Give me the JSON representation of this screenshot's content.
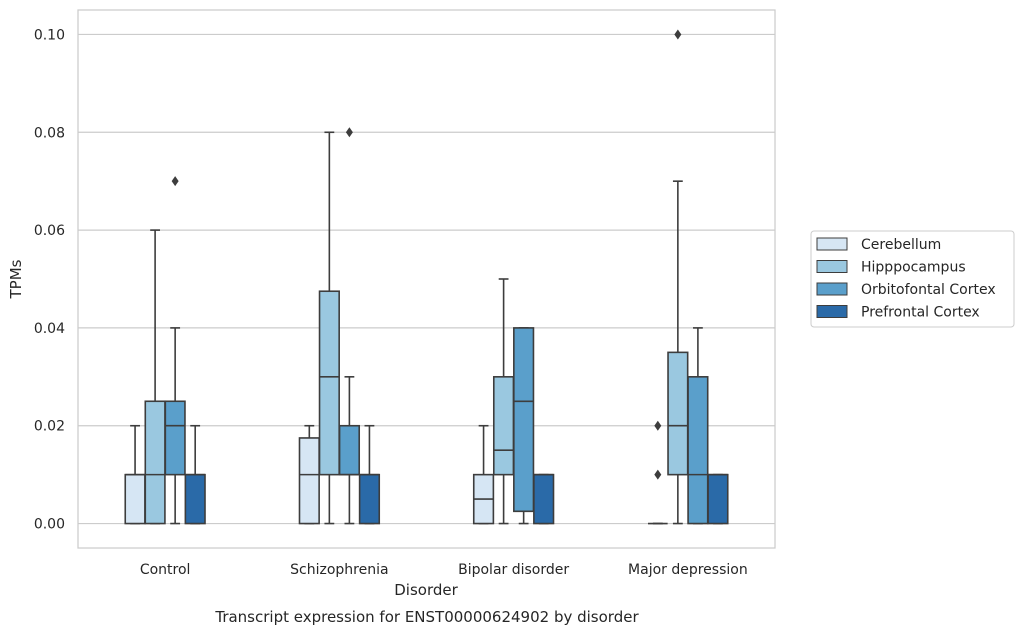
{
  "chart_data": {
    "type": "boxplot",
    "title": "Transcript expression for ENST00000624902 by disorder",
    "xlabel": "Disorder",
    "ylabel": "TPMs",
    "ylim": [
      -0.005,
      0.105
    ],
    "yticks": [
      0.0,
      0.02,
      0.04,
      0.06,
      0.08,
      0.1
    ],
    "ytick_labels": [
      "0.00",
      "0.02",
      "0.04",
      "0.06",
      "0.08",
      "0.10"
    ],
    "grid": true,
    "legend_position": "right",
    "categories": [
      "Control",
      "Schizophrenia",
      "Bipolar disorder",
      "Major depression"
    ],
    "series": [
      {
        "name": "Cerebellum",
        "color": "#d6e6f4",
        "boxes": [
          {
            "whislo": 0.0,
            "q1": 0.0,
            "med": 0.01,
            "q3": 0.01,
            "whishi": 0.02,
            "fliers": []
          },
          {
            "whislo": 0.0,
            "q1": 0.0,
            "med": 0.01,
            "q3": 0.0175,
            "whishi": 0.02,
            "fliers": []
          },
          {
            "whislo": 0.0,
            "q1": 0.0,
            "med": 0.005,
            "q3": 0.01,
            "whishi": 0.02,
            "fliers": []
          },
          {
            "whislo": 0.0,
            "q1": 0.0,
            "med": 0.0,
            "q3": 0.0,
            "whishi": 0.0,
            "fliers": [
              0.01,
              0.02
            ]
          }
        ]
      },
      {
        "name": "Hipppocampus",
        "color": "#9ac8e0",
        "boxes": [
          {
            "whislo": 0.0,
            "q1": 0.0,
            "med": 0.01,
            "q3": 0.025,
            "whishi": 0.06,
            "fliers": []
          },
          {
            "whislo": 0.0,
            "q1": 0.01,
            "med": 0.03,
            "q3": 0.0475,
            "whishi": 0.08,
            "fliers": []
          },
          {
            "whislo": 0.0,
            "q1": 0.01,
            "med": 0.015,
            "q3": 0.03,
            "whishi": 0.05,
            "fliers": []
          },
          {
            "whislo": 0.0,
            "q1": 0.01,
            "med": 0.02,
            "q3": 0.035,
            "whishi": 0.07,
            "fliers": [
              0.1
            ]
          }
        ]
      },
      {
        "name": "Orbitofontal Cortex",
        "color": "#5a9fcb",
        "boxes": [
          {
            "whislo": 0.0,
            "q1": 0.01,
            "med": 0.02,
            "q3": 0.025,
            "whishi": 0.04,
            "fliers": [
              0.07
            ]
          },
          {
            "whislo": 0.0,
            "q1": 0.01,
            "med": 0.01,
            "q3": 0.02,
            "whishi": 0.03,
            "fliers": [
              0.08
            ]
          },
          {
            "whislo": 0.0,
            "q1": 0.0025,
            "med": 0.025,
            "q3": 0.04,
            "whishi": 0.04,
            "fliers": []
          },
          {
            "whislo": 0.0,
            "q1": 0.0,
            "med": 0.01,
            "q3": 0.03,
            "whishi": 0.04,
            "fliers": []
          }
        ]
      },
      {
        "name": "Prefrontal Cortex",
        "color": "#2a6aa8",
        "boxes": [
          {
            "whislo": 0.0,
            "q1": 0.0,
            "med": 0.01,
            "q3": 0.01,
            "whishi": 0.02,
            "fliers": []
          },
          {
            "whislo": 0.0,
            "q1": 0.0,
            "med": 0.01,
            "q3": 0.01,
            "whishi": 0.02,
            "fliers": []
          },
          {
            "whislo": 0.0,
            "q1": 0.0,
            "med": 0.01,
            "q3": 0.01,
            "whishi": 0.01,
            "fliers": []
          },
          {
            "whislo": 0.0,
            "q1": 0.0,
            "med": 0.01,
            "q3": 0.01,
            "whishi": 0.01,
            "fliers": []
          }
        ]
      }
    ]
  }
}
